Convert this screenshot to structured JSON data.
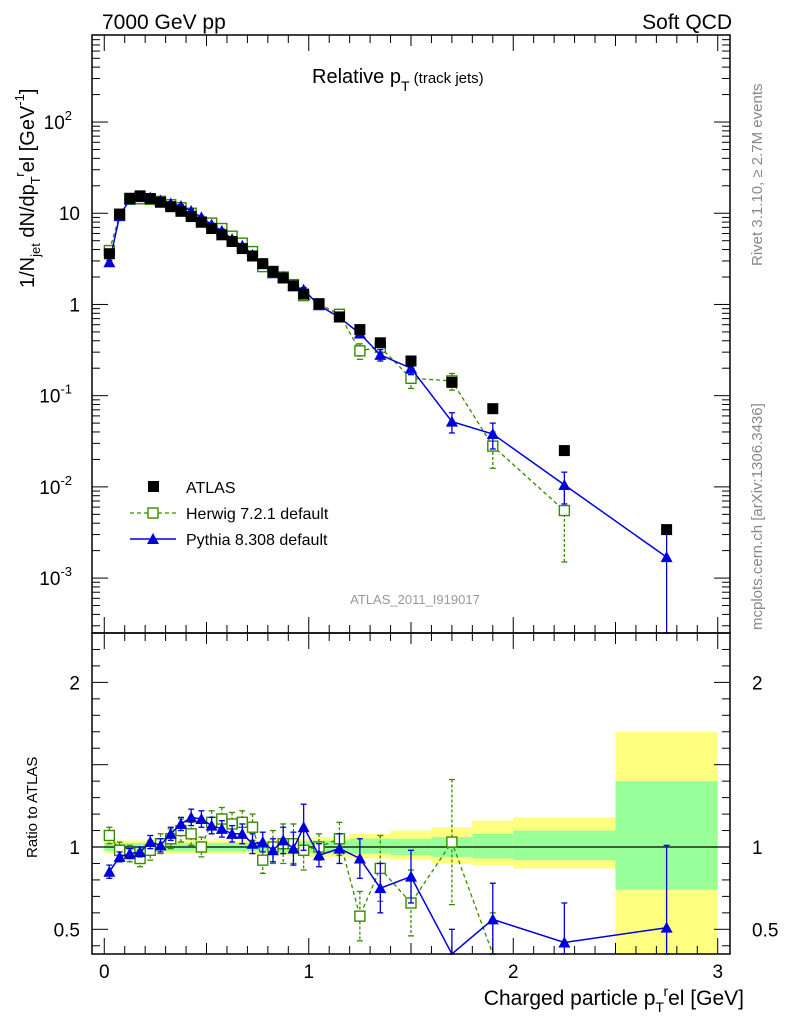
{
  "header": {
    "energy_label": "7000 GeV pp",
    "process_label": "Soft QCD",
    "plot_title": "Relative p",
    "plot_title_sub": "T",
    "plot_title_suffix": " (track jets)",
    "analysis_id": "ATLAS_2011_I919017",
    "side_label_top": "Rivet 3.1.10, ≥ 2.7M events",
    "side_label_bottom": "mcplots.cern.ch [arXiv:1306.3436]"
  },
  "legend": {
    "data_label": "ATLAS",
    "herwig_label": "Herwig 7.2.1 default",
    "pythia_label": "Pythia 8.308 default"
  },
  "colors": {
    "data": "#000000",
    "herwig": "#3a8a00",
    "pythia": "#0000dd",
    "band_inner": "#99ff99",
    "band_outer": "#ffff80"
  },
  "chart_data": [
    {
      "type": "scatter",
      "panel": "main",
      "ylabel": "1/N_jet dN/dp_T^rel [GeV^-1]",
      "yscale": "log",
      "xlim": [
        -0.06,
        3.06
      ],
      "ylim": [
        0.00025,
        900
      ],
      "x_ticks": [
        "0",
        "1",
        "2",
        "3"
      ],
      "y_ticks": [
        "10^-3",
        "10^-2",
        "10^-1",
        "1",
        "10",
        "10^2"
      ],
      "series": [
        {
          "name": "ATLAS",
          "x": [
            0.025,
            0.075,
            0.125,
            0.175,
            0.225,
            0.275,
            0.325,
            0.375,
            0.425,
            0.475,
            0.525,
            0.575,
            0.625,
            0.675,
            0.725,
            0.775,
            0.825,
            0.875,
            0.925,
            0.975,
            1.05,
            1.15,
            1.25,
            1.35,
            1.5,
            1.7,
            1.9,
            2.25,
            2.75
          ],
          "y": [
            3.6,
            9.8,
            14.6,
            15.5,
            14.5,
            13.2,
            11.8,
            10.5,
            9.2,
            8.0,
            6.8,
            5.8,
            4.9,
            4.1,
            3.4,
            2.8,
            2.3,
            1.95,
            1.6,
            1.3,
            1.02,
            0.73,
            0.53,
            0.38,
            0.24,
            0.14,
            0.072,
            0.025,
            0.0034
          ],
          "yerr": null
        },
        {
          "name": "Herwig 7.2.1 default",
          "x": [
            0.025,
            0.075,
            0.125,
            0.175,
            0.225,
            0.275,
            0.325,
            0.375,
            0.425,
            0.475,
            0.525,
            0.575,
            0.625,
            0.675,
            0.725,
            0.775,
            0.825,
            0.875,
            0.925,
            0.975,
            1.05,
            1.15,
            1.25,
            1.35,
            1.5,
            1.7,
            1.9,
            2.25
          ],
          "y": [
            3.9,
            9.5,
            14.2,
            14.4,
            14.2,
            13.5,
            12.4,
            11.5,
            10.0,
            8.0,
            7.8,
            6.8,
            5.6,
            4.7,
            3.8,
            2.6,
            2.3,
            2.0,
            1.65,
            1.25,
            1.01,
            0.78,
            0.31,
            0.34,
            0.155,
            0.145,
            0.028,
            0.0055
          ],
          "yerr": [
            0.2,
            0.4,
            0.5,
            0.5,
            0.5,
            0.5,
            0.5,
            0.5,
            0.5,
            0.4,
            0.4,
            0.4,
            0.3,
            0.3,
            0.2,
            0.2,
            0.15,
            0.12,
            0.1,
            0.08,
            0.06,
            0.05,
            0.06,
            0.05,
            0.035,
            0.03,
            0.012,
            0.004
          ]
        },
        {
          "name": "Pythia 8.308 default",
          "x": [
            0.025,
            0.075,
            0.125,
            0.175,
            0.225,
            0.275,
            0.325,
            0.375,
            0.425,
            0.475,
            0.525,
            0.575,
            0.625,
            0.675,
            0.725,
            0.775,
            0.825,
            0.875,
            0.925,
            0.975,
            1.05,
            1.15,
            1.25,
            1.35,
            1.5,
            1.7,
            1.9,
            2.25,
            2.75
          ],
          "y": [
            2.9,
            9.3,
            14.2,
            15.0,
            14.9,
            13.8,
            12.8,
            12.0,
            10.6,
            9.0,
            7.5,
            6.4,
            5.2,
            4.4,
            3.5,
            2.8,
            2.2,
            2.0,
            1.6,
            1.45,
            0.98,
            0.72,
            0.48,
            0.28,
            0.2,
            0.052,
            0.038,
            0.0105,
            0.0017
          ],
          "yerr": [
            0.15,
            0.3,
            0.4,
            0.4,
            0.4,
            0.4,
            0.4,
            0.4,
            0.4,
            0.3,
            0.3,
            0.3,
            0.25,
            0.2,
            0.15,
            0.12,
            0.1,
            0.1,
            0.08,
            0.08,
            0.05,
            0.05,
            0.05,
            0.04,
            0.03,
            0.013,
            0.012,
            0.004,
            0.0015
          ]
        }
      ]
    },
    {
      "type": "scatter",
      "panel": "ratio",
      "xlabel": "Charged particle p_T^rel [GeV]",
      "ylabel": "Ratio to ATLAS",
      "xlim": [
        -0.06,
        3.06
      ],
      "ylim": [
        0.35,
        2.3
      ],
      "y_ticks": [
        "0.5",
        "1",
        "2"
      ],
      "x_ticks": [
        "0",
        "1",
        "2",
        "3"
      ],
      "band_bins": [
        [
          0,
          0.8,
          0.975,
          1.025,
          0.96,
          1.04
        ],
        [
          0.8,
          1.0,
          0.965,
          1.035,
          0.95,
          1.05
        ],
        [
          1.0,
          1.2,
          0.96,
          1.04,
          0.94,
          1.06
        ],
        [
          1.2,
          1.4,
          0.96,
          1.05,
          0.93,
          1.08
        ],
        [
          1.4,
          1.6,
          0.95,
          1.05,
          0.92,
          1.1
        ],
        [
          1.6,
          1.8,
          0.94,
          1.06,
          0.9,
          1.12
        ],
        [
          1.8,
          2.0,
          0.93,
          1.08,
          0.89,
          1.16
        ],
        [
          2.0,
          2.5,
          0.92,
          1.1,
          0.87,
          1.18
        ],
        [
          2.5,
          3.0,
          0.74,
          1.4,
          0.35,
          1.7
        ]
      ],
      "series": [
        {
          "name": "Herwig 7.2.1 default",
          "x": [
            0.025,
            0.075,
            0.125,
            0.175,
            0.225,
            0.275,
            0.325,
            0.375,
            0.425,
            0.475,
            0.525,
            0.575,
            0.625,
            0.675,
            0.725,
            0.775,
            0.825,
            0.875,
            0.925,
            0.975,
            1.05,
            1.15,
            1.25,
            1.35,
            1.5,
            1.7,
            1.9
          ],
          "y": [
            1.07,
            0.98,
            0.96,
            0.93,
            0.98,
            1.02,
            1.05,
            1.1,
            1.08,
            1.0,
            1.15,
            1.17,
            1.14,
            1.15,
            1.12,
            0.92,
            1.0,
            1.02,
            1.02,
            0.98,
            1.0,
            1.05,
            0.58,
            0.87,
            0.66,
            1.03,
            0.3
          ],
          "yerr": [
            0.05,
            0.05,
            0.05,
            0.05,
            0.06,
            0.06,
            0.06,
            0.07,
            0.07,
            0.06,
            0.07,
            0.07,
            0.07,
            0.07,
            0.08,
            0.08,
            0.1,
            0.12,
            0.12,
            0.12,
            0.08,
            0.1,
            0.15,
            0.2,
            0.2,
            0.38,
            0.3
          ]
        },
        {
          "name": "Pythia 8.308 default",
          "x": [
            0.025,
            0.075,
            0.125,
            0.175,
            0.225,
            0.275,
            0.325,
            0.375,
            0.425,
            0.475,
            0.525,
            0.575,
            0.625,
            0.675,
            0.725,
            0.775,
            0.825,
            0.875,
            0.925,
            0.975,
            1.05,
            1.15,
            1.25,
            1.35,
            1.5,
            1.7,
            1.9,
            2.25,
            2.75
          ],
          "y": [
            0.85,
            0.94,
            0.96,
            0.97,
            1.03,
            1.01,
            1.08,
            1.14,
            1.18,
            1.17,
            1.13,
            1.11,
            1.08,
            1.08,
            1.02,
            1.03,
            0.98,
            1.04,
            0.99,
            1.12,
            0.95,
            0.99,
            0.93,
            0.75,
            0.82,
            0.3,
            0.56,
            0.42,
            0.51
          ],
          "yerr": [
            0.04,
            0.03,
            0.03,
            0.03,
            0.04,
            0.04,
            0.04,
            0.04,
            0.05,
            0.05,
            0.05,
            0.05,
            0.05,
            0.06,
            0.06,
            0.06,
            0.07,
            0.08,
            0.1,
            0.14,
            0.07,
            0.09,
            0.12,
            0.15,
            0.16,
            0.2,
            0.22,
            0.24,
            0.5
          ]
        }
      ]
    }
  ]
}
